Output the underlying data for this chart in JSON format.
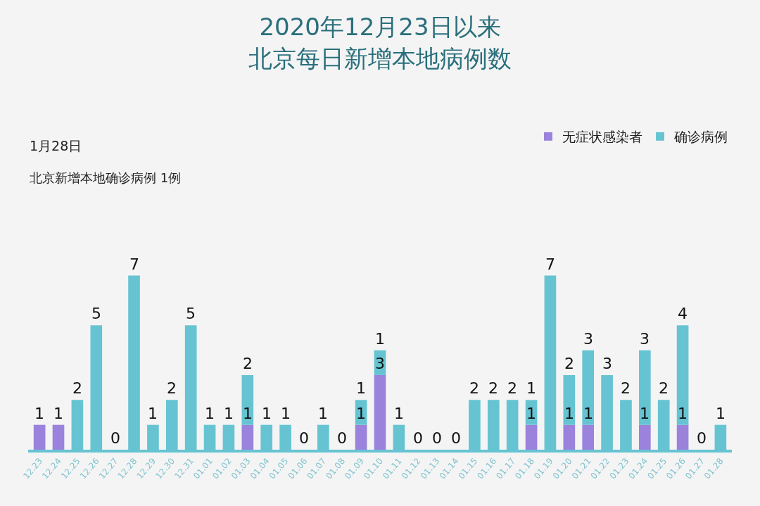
{
  "chart_data": {
    "type": "bar",
    "title": "2020年12月23日以来",
    "subtitle": "北京每日新增本地病例数",
    "stacked": true,
    "legend": "top right",
    "categories": [
      "12.23",
      "12.24",
      "12.25",
      "12.26",
      "12.27",
      "12.28",
      "12.29",
      "12.30",
      "12.31",
      "01.01",
      "01.02",
      "01.03",
      "01.04",
      "01.05",
      "01.06",
      "01.07",
      "01.08",
      "01.09",
      "01.10",
      "01.11",
      "01.12",
      "01.13",
      "01.14",
      "01.15",
      "01.16",
      "01.17",
      "01.18",
      "01.19",
      "01.20",
      "01.21",
      "01.22",
      "01.23",
      "01.24",
      "01.25",
      "01.26",
      "01.27",
      "01.28"
    ],
    "series": [
      {
        "name": "无症状感染者",
        "color": "#9b82dc",
        "values": [
          1,
          1,
          0,
          0,
          0,
          0,
          0,
          0,
          0,
          0,
          0,
          1,
          0,
          0,
          0,
          0,
          0,
          1,
          3,
          0,
          0,
          0,
          0,
          0,
          0,
          0,
          1,
          0,
          1,
          1,
          0,
          0,
          1,
          0,
          1,
          0,
          0
        ],
        "value_labels": [
          "1",
          "1",
          null,
          null,
          null,
          null,
          null,
          null,
          null,
          null,
          null,
          "1",
          null,
          null,
          null,
          null,
          null,
          "1",
          "3",
          null,
          null,
          null,
          null,
          null,
          null,
          null,
          "1",
          null,
          "1",
          "1",
          null,
          null,
          "1",
          null,
          "1",
          null,
          null
        ]
      },
      {
        "name": "确诊病例",
        "color": "#66c4d2",
        "values": [
          0,
          0,
          2,
          5,
          0,
          7,
          1,
          2,
          5,
          1,
          1,
          2,
          1,
          1,
          0,
          1,
          0,
          1,
          1,
          1,
          0,
          0,
          0,
          2,
          2,
          2,
          1,
          7,
          2,
          3,
          3,
          2,
          3,
          2,
          4,
          0,
          1
        ],
        "value_labels": [
          null,
          null,
          "2",
          "5",
          "0",
          "7",
          "1",
          "2",
          "5",
          "1",
          "1",
          "2",
          "1",
          "1",
          "0",
          "1",
          "0",
          "1",
          "1",
          "1",
          "0",
          "0",
          "0",
          "2",
          "2",
          "2",
          "1",
          "7",
          "2",
          "3",
          "3",
          "2",
          "3",
          "2",
          "4",
          "0",
          "1"
        ]
      }
    ],
    "annotations": [
      "1月28日",
      "北京新增本地确诊病例 1例"
    ]
  }
}
